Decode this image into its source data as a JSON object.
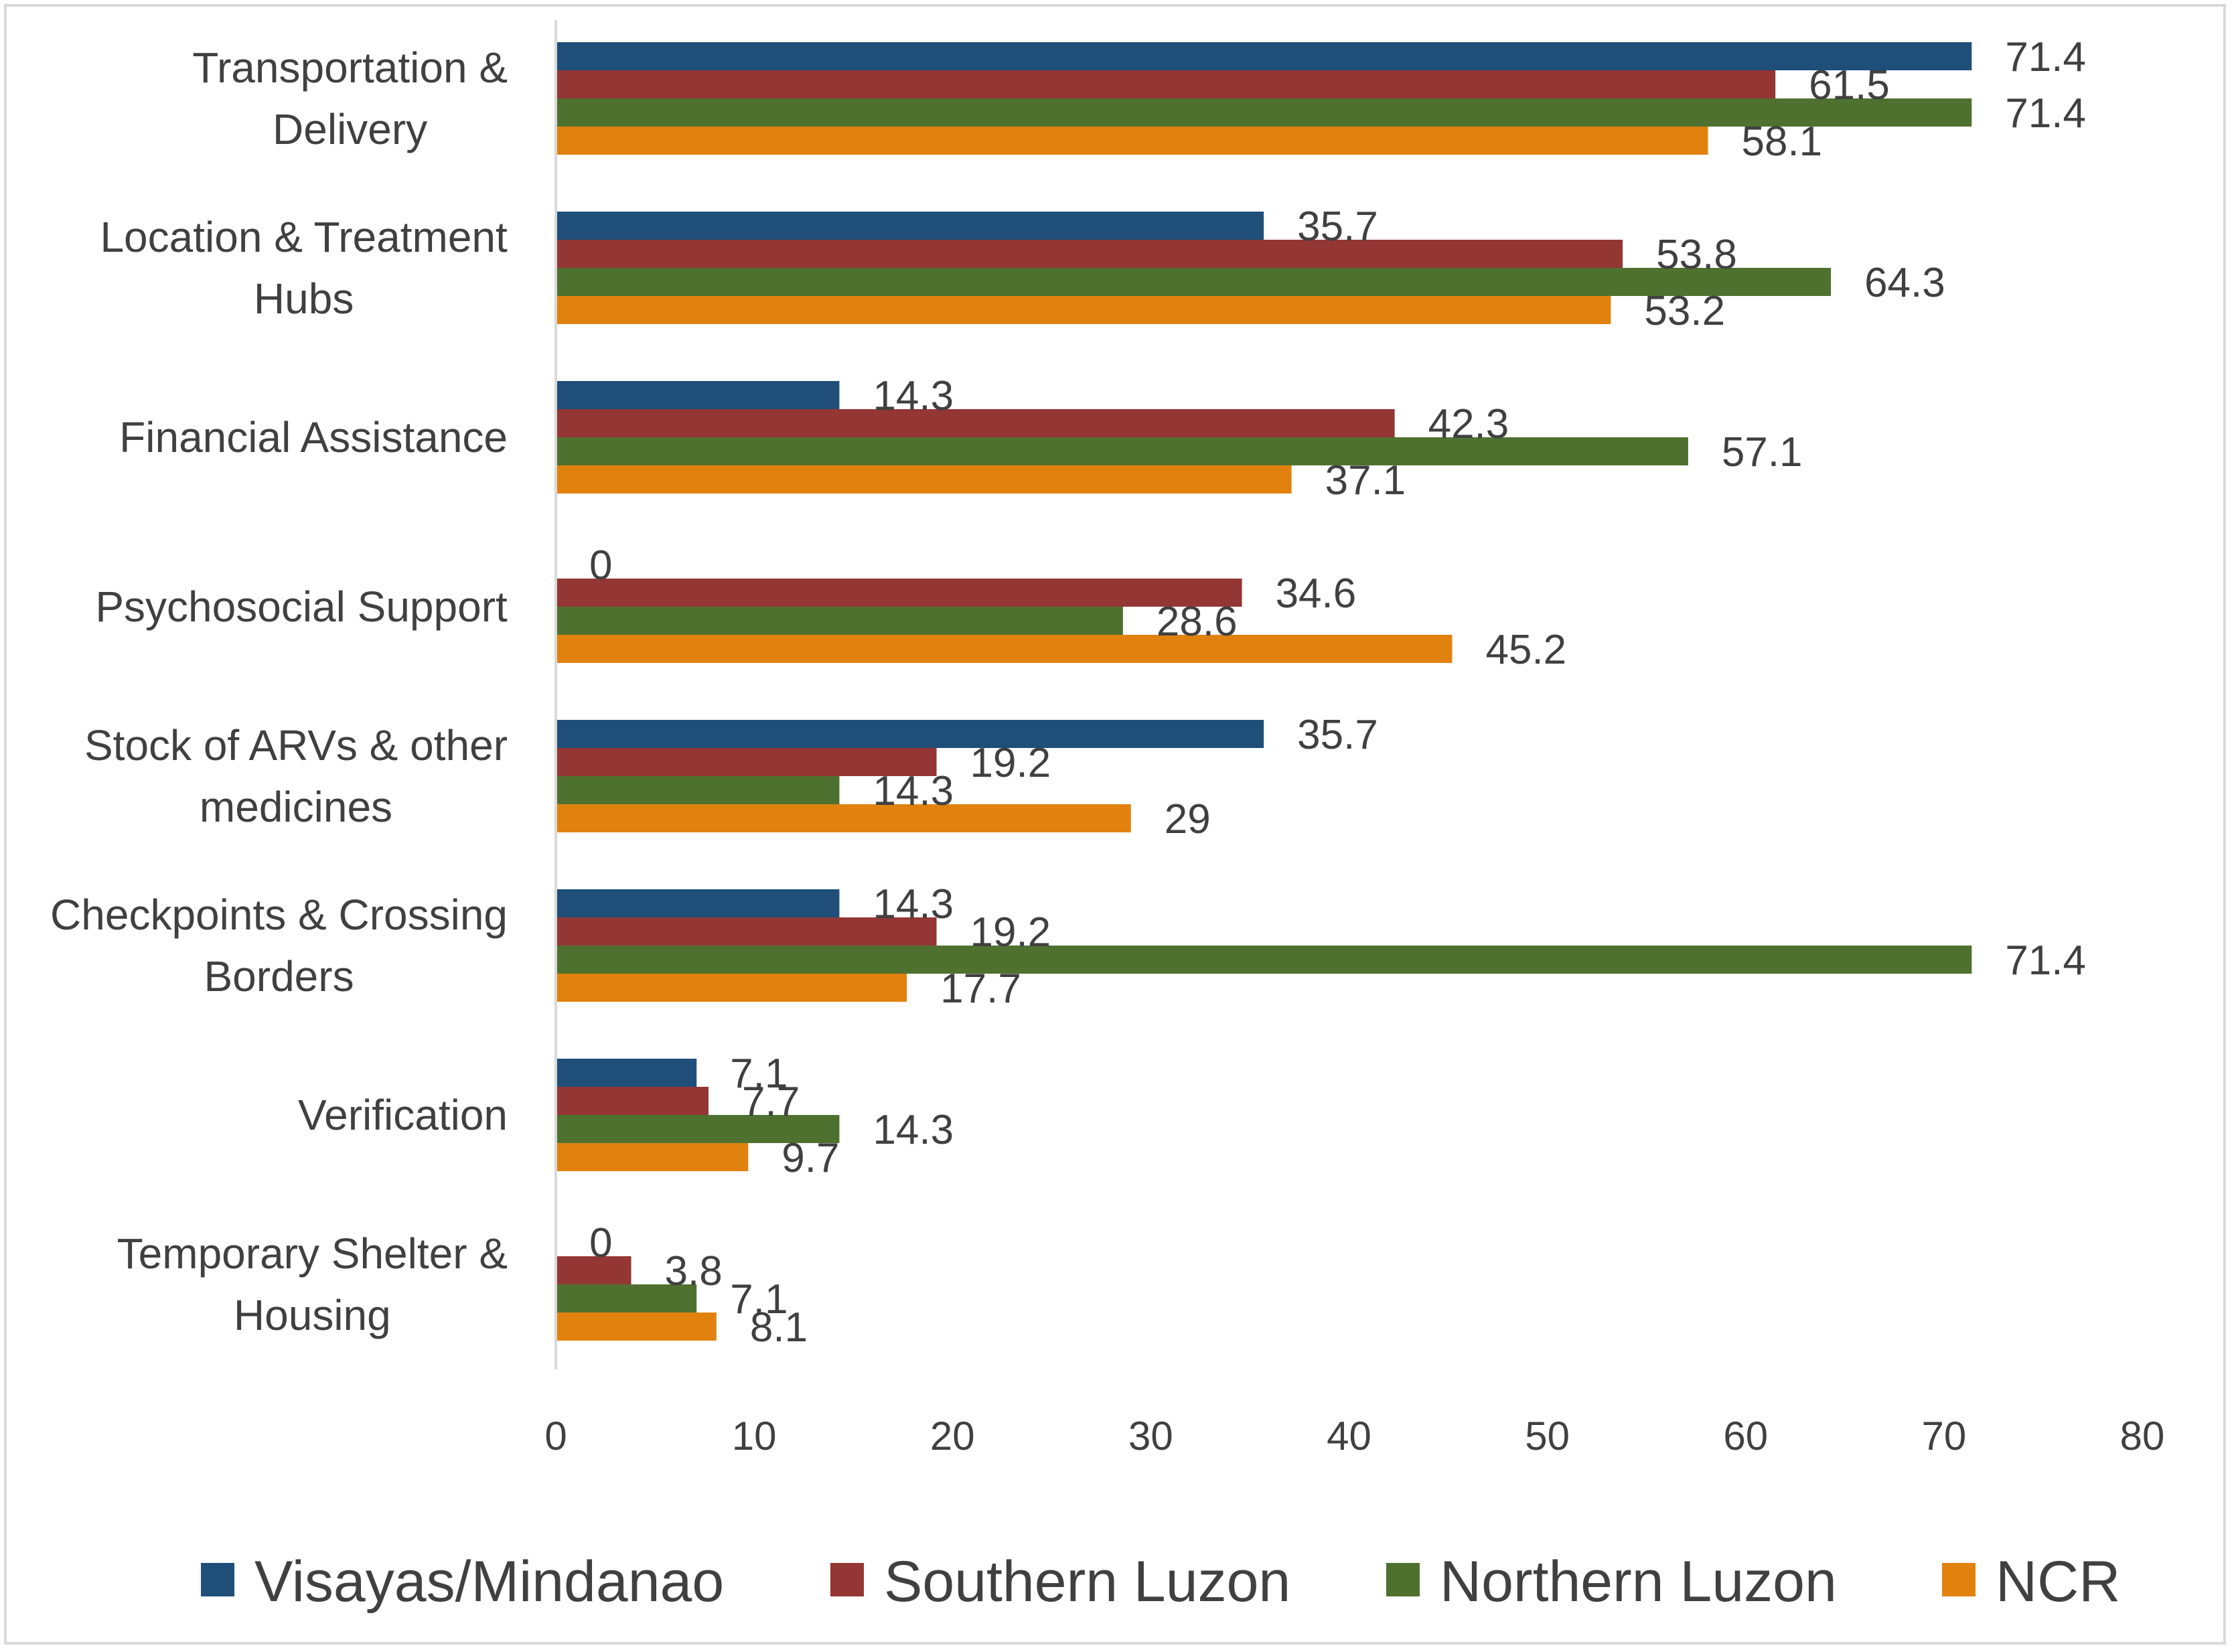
{
  "chart_data": {
    "type": "bar",
    "orientation": "horizontal",
    "categories": [
      [
        "Transportation &",
        "Delivery"
      ],
      [
        "Location & Treatment",
        "Hubs"
      ],
      [
        "Financial Assistance"
      ],
      [
        "Psychosocial Support"
      ],
      [
        "Stock of ARVs & other",
        "medicines"
      ],
      [
        "Checkpoints & Crossing",
        "Borders"
      ],
      [
        "Verification"
      ],
      [
        "Temporary Shelter &",
        "Housing"
      ]
    ],
    "series": [
      {
        "name": "Visayas/Mindanao",
        "color": "#1f4e79",
        "values": [
          71.4,
          35.7,
          14.3,
          0,
          35.7,
          14.3,
          7.1,
          0
        ]
      },
      {
        "name": "Southern Luzon",
        "color": "#943634",
        "values": [
          61.5,
          53.8,
          42.3,
          34.6,
          19.2,
          19.2,
          7.7,
          3.8
        ]
      },
      {
        "name": "Northern Luzon",
        "color": "#4f7130",
        "values": [
          71.4,
          64.3,
          57.1,
          28.6,
          14.3,
          71.4,
          14.3,
          7.1
        ]
      },
      {
        "name": "NCR",
        "color": "#e2820e",
        "values": [
          58.1,
          53.2,
          37.1,
          45.2,
          29,
          17.7,
          9.7,
          8.1
        ]
      }
    ],
    "xlim": [
      0,
      80
    ],
    "xticks": [
      "0",
      "10",
      "20",
      "30",
      "40",
      "50",
      "60",
      "70",
      "80"
    ],
    "title": "",
    "xlabel": "",
    "ylabel": "",
    "grid": false,
    "legend_position": "bottom"
  }
}
